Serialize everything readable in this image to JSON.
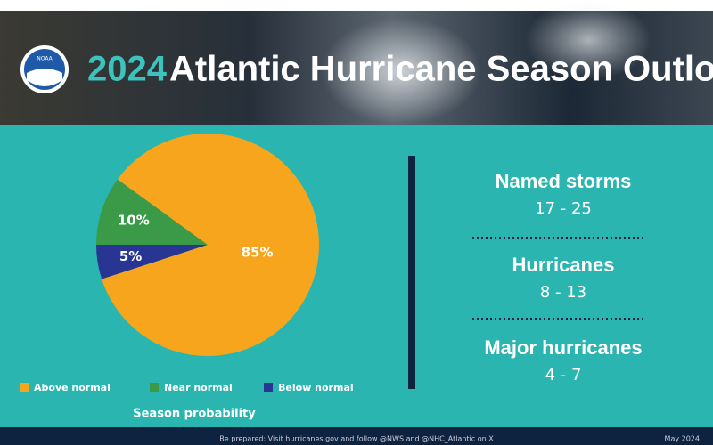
{
  "header": {
    "logo": "NOAA",
    "year": "2024",
    "title": "Atlantic Hurricane Season Outlook"
  },
  "chart_data": {
    "type": "pie",
    "xlabel": "Season probability",
    "categories": [
      "Above normal",
      "Near normal",
      "Below normal"
    ],
    "values": [
      85,
      10,
      5
    ],
    "value_labels": [
      "85%",
      "10%",
      "5%"
    ],
    "colors": [
      "#f7a51c",
      "#3a9a47",
      "#283593"
    ]
  },
  "outlook": [
    {
      "label": "Named storms",
      "value": "17 - 25"
    },
    {
      "label": "Hurricanes",
      "value": "8 - 13"
    },
    {
      "label": "Major hurricanes",
      "value": "4 - 7"
    }
  ],
  "footer": {
    "note": "Be prepared: Visit hurricanes.gov and follow @NWS and @NHC_Atlantic on X",
    "date": "May 2024"
  }
}
